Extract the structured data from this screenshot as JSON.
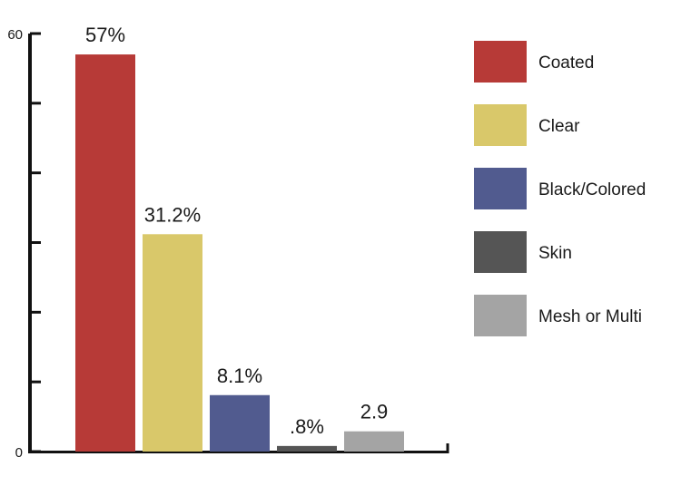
{
  "chart_data": {
    "type": "bar",
    "title": "",
    "xlabel": "",
    "ylabel": "",
    "ylim": [
      0,
      60
    ],
    "y_tick_labels": [
      "0",
      "60"
    ],
    "y_tick_values": [
      0,
      10,
      20,
      30,
      40,
      50,
      60
    ],
    "grid": false,
    "legend_position": "right",
    "categories": [
      "Coated",
      "Clear",
      "Black/Colored",
      "Skin",
      "Mesh or Multi"
    ],
    "values": [
      57,
      31.2,
      8.1,
      0.8,
      2.9
    ],
    "data_labels": [
      "57%",
      "31.2%",
      "8.1%",
      ".8%",
      "2.9"
    ],
    "colors": [
      "#b73a37",
      "#d9c86a",
      "#515b8f",
      "#555555",
      "#a4a4a4"
    ]
  }
}
